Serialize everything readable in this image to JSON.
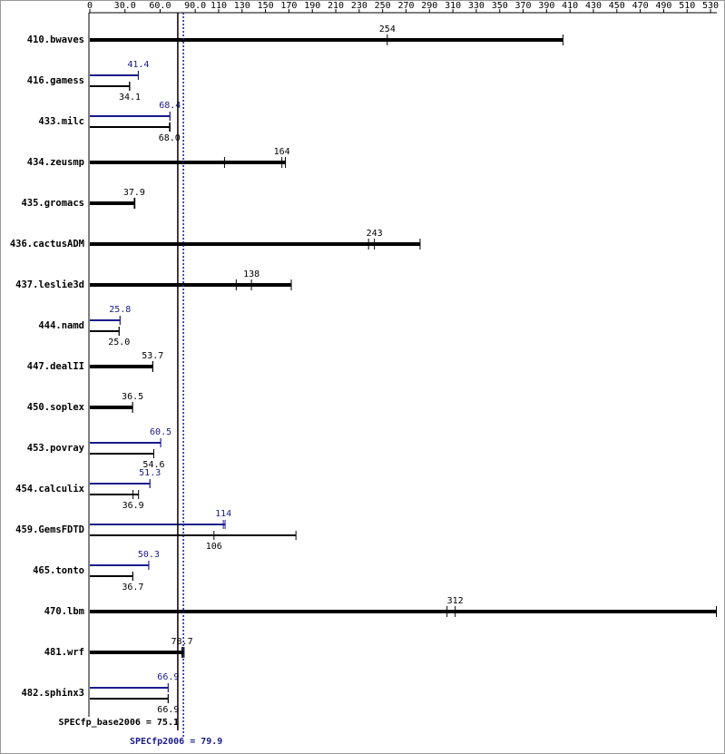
{
  "chart_data": {
    "type": "bar",
    "orientation": "horizontal",
    "categories": [
      "410.bwaves",
      "416.gamess",
      "433.milc",
      "434.zeusmp",
      "435.gromacs",
      "436.cactusADM",
      "437.leslie3d",
      "444.namd",
      "447.dealII",
      "450.soplex",
      "453.povray",
      "454.calculix",
      "459.GemsFDTD",
      "465.tonto",
      "470.lbm",
      "481.wrf",
      "482.sphinx3"
    ],
    "series": [
      {
        "name": "SPECfp_base2006",
        "color": "#000000",
        "values": [
          254,
          34.1,
          68.0,
          164,
          37.9,
          243,
          138,
          25.0,
          53.7,
          36.5,
          54.6,
          36.9,
          106,
          36.7,
          312,
          78.7,
          66.9
        ],
        "value_labels": [
          "254",
          "34.1",
          "68.0",
          "164",
          "37.9",
          "243",
          "138",
          "25.0",
          "53.7",
          "36.5",
          "54.6",
          "36.9",
          "106",
          "36.7",
          "312",
          "78.7",
          "66.9"
        ],
        "bar_ends": [
          404,
          33.8,
          68.5,
          167,
          38.5,
          282,
          172,
          25.0,
          53.8,
          36.5,
          54.6,
          41.6,
          176,
          36.7,
          535,
          80.5,
          66.9
        ],
        "run_marks": [
          [],
          [],
          [],
          [
            115
          ],
          [],
          [
            238
          ],
          [
            125
          ],
          [],
          [],
          [],
          [],
          [],
          [],
          [],
          [
            305
          ],
          [
            79.5
          ],
          []
        ]
      },
      {
        "name": "SPECfp2006",
        "color": "#1a1a8c",
        "values": [
          null,
          41.4,
          68.4,
          null,
          null,
          null,
          null,
          25.8,
          null,
          null,
          60.5,
          51.3,
          114,
          50.3,
          null,
          null,
          66.9
        ],
        "bar_ends": [
          null,
          41.4,
          68.4,
          null,
          null,
          null,
          null,
          25.8,
          null,
          null,
          60.5,
          51.3,
          115.5,
          50.3,
          null,
          null,
          66.9
        ],
        "run_marks": [
          [],
          [],
          [],
          [],
          [],
          [],
          [],
          [],
          [],
          [],
          [],
          [],
          [],
          [],
          [],
          [],
          []
        ]
      }
    ],
    "xlim": [
      0,
      535
    ],
    "xticks": [
      0,
      {
        "value": 30,
        "label": "30.0"
      },
      {
        "value": 60,
        "label": "60.0"
      },
      {
        "value": 90,
        "label": "90.0"
      },
      110,
      130,
      150,
      170,
      190,
      210,
      230,
      250,
      270,
      290,
      310,
      330,
      350,
      370,
      390,
      410,
      430,
      450,
      470,
      490,
      510,
      530
    ],
    "reference_lines": [
      {
        "label": "SPECfp_base2006 =",
        "value": 75.1,
        "color": "#000000",
        "style": "solid"
      },
      {
        "label": "SPECfp2006 =",
        "value": 79.9,
        "color": "#1a1a8c",
        "style": "dotted"
      }
    ]
  }
}
